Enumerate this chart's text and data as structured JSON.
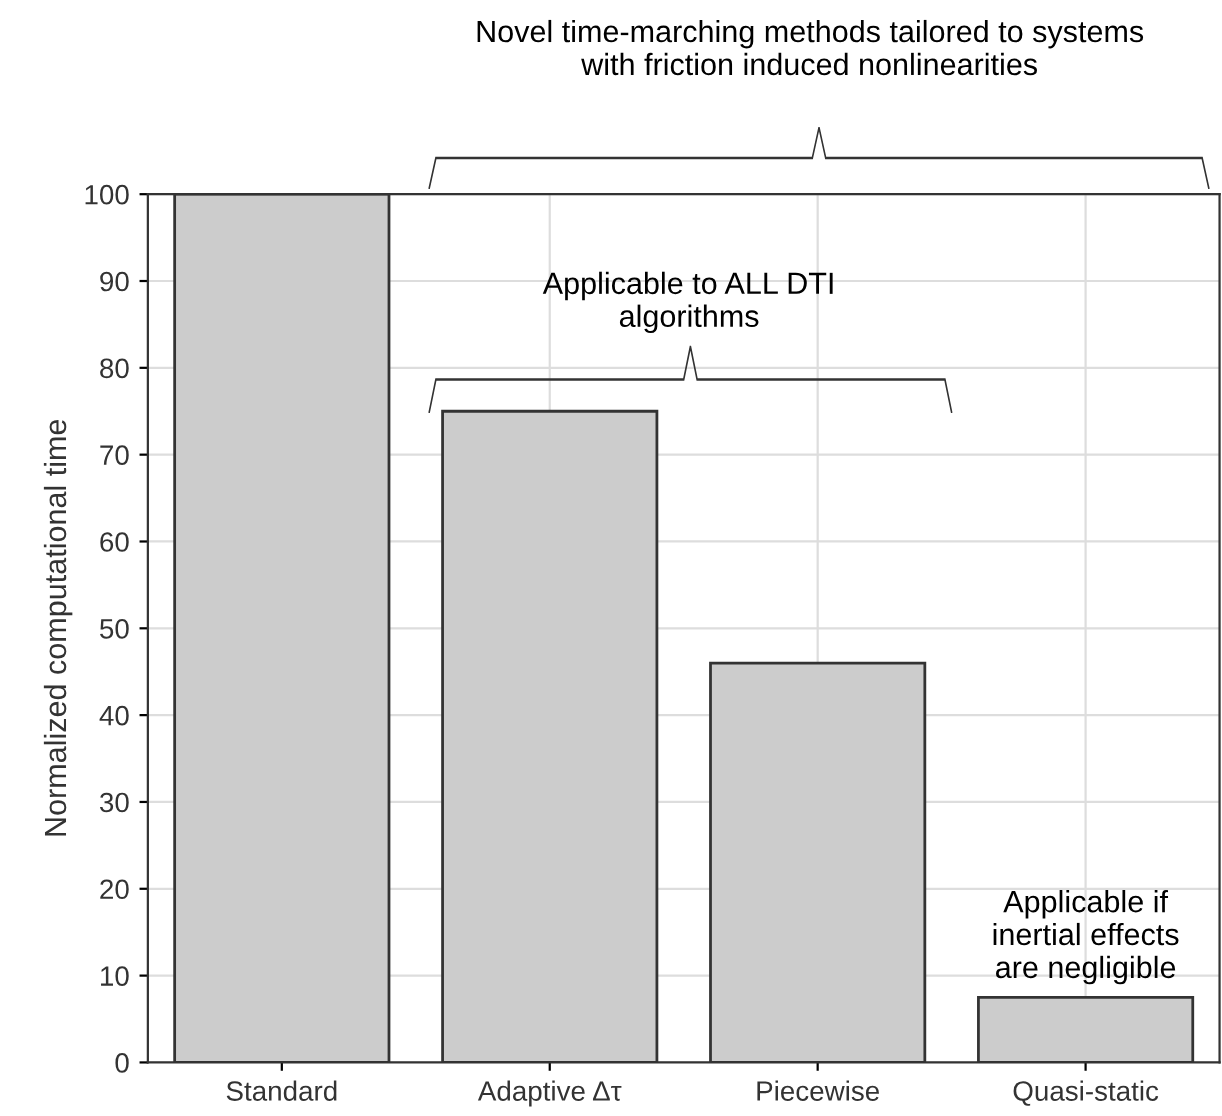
{
  "chart_data": {
    "type": "bar",
    "ylabel": "Normalized computational time",
    "categories": [
      "Standard",
      "Adaptive Δτ",
      "Piecewise",
      "Quasi-static"
    ],
    "values": [
      100,
      75,
      46,
      7.5
    ],
    "color": "#cccccc",
    "ylim": [
      0,
      100
    ],
    "yticks": [
      0,
      10,
      20,
      30,
      40,
      50,
      60,
      70,
      80,
      90,
      100
    ],
    "grid": true,
    "annotations": [
      "Novel time-marching methods tailored to systems\nwith friction induced nonlinearities",
      "Applicable to ALL DTI\nalgorithms",
      "Applicable if\ninertial effects\nare negligible"
    ]
  }
}
